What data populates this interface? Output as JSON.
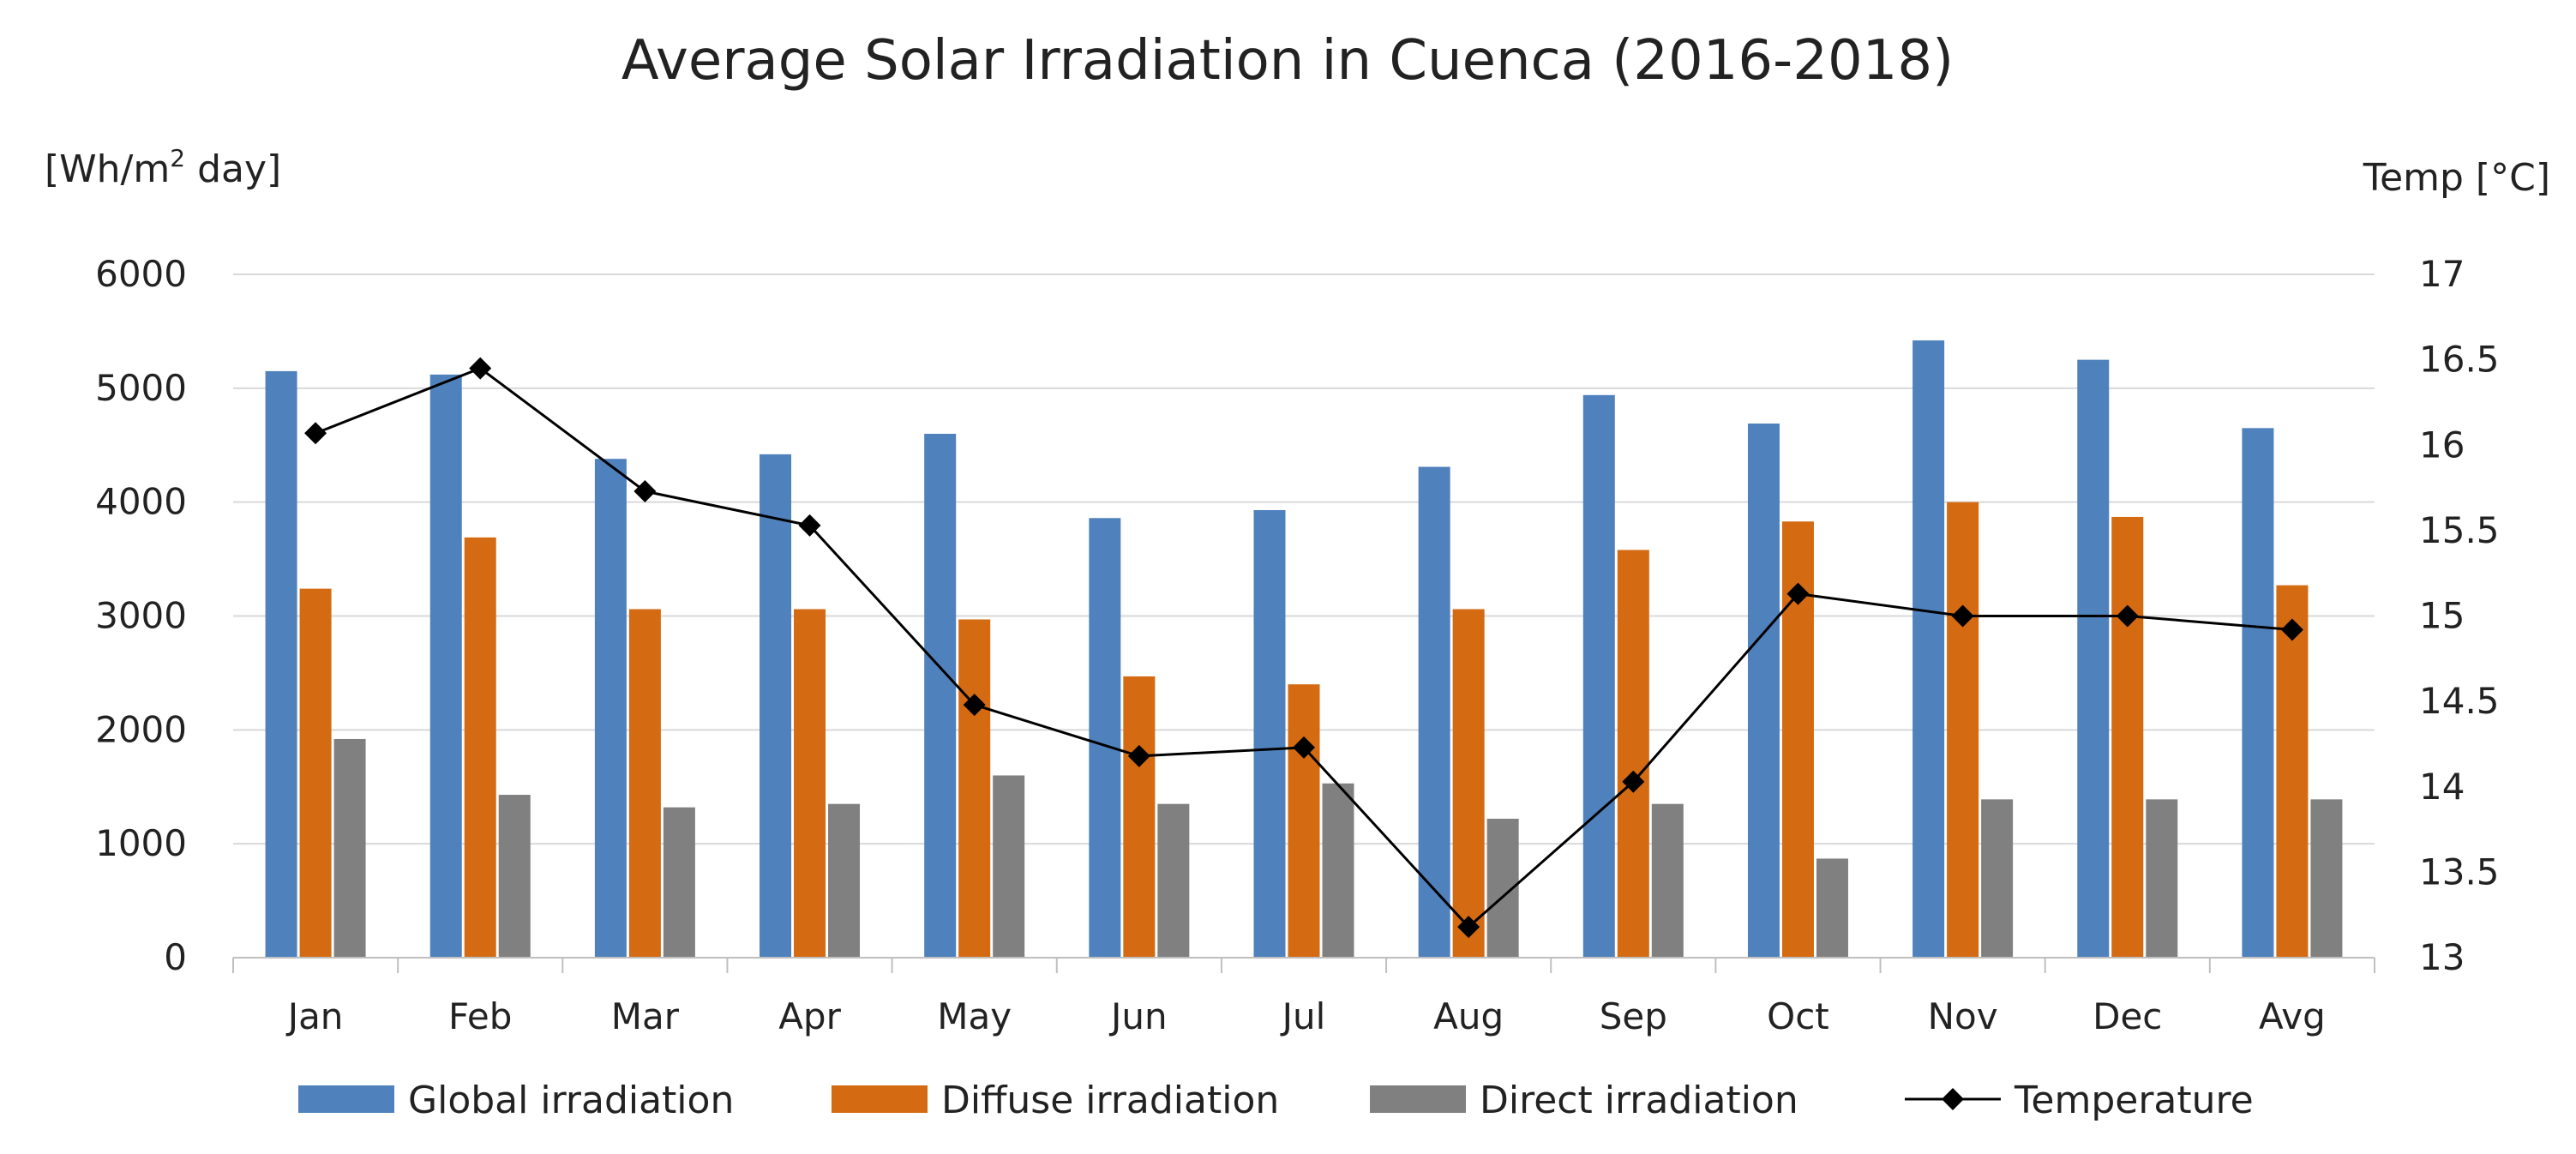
{
  "chart_data": {
    "type": "bar",
    "title": "Average Solar Irradiation in Cuenca (2016-2018)",
    "ylabel": {
      "prefix": "[Wh/m",
      "sup": "2",
      "suffix": " day]"
    },
    "y2label": "Temp  [°C]",
    "categories": [
      "Jan",
      "Feb",
      "Mar",
      "Apr",
      "May",
      "Jun",
      "Jul",
      "Aug",
      "Sep",
      "Oct",
      "Nov",
      "Dec",
      "Avg"
    ],
    "ylim": [
      0,
      6000
    ],
    "yticks": [
      "0",
      "1000",
      "2000",
      "3000",
      "4000",
      "5000",
      "6000"
    ],
    "y2lim": [
      13,
      17
    ],
    "y2ticks": [
      "13",
      "13.5",
      "14",
      "14.5",
      "15",
      "15.5",
      "16",
      "16.5",
      "17"
    ],
    "series": [
      {
        "name": "Global irradiation",
        "kind": "bar",
        "axis": "left",
        "color": "#4F81BD",
        "values": [
          5150,
          5120,
          4380,
          4420,
          4600,
          3860,
          3930,
          4310,
          4940,
          4690,
          5420,
          5250,
          4650
        ]
      },
      {
        "name": "Diffuse irradiation",
        "kind": "bar",
        "axis": "left",
        "color": "#D46A12",
        "values": [
          3240,
          3690,
          3060,
          3060,
          2970,
          2470,
          2400,
          3060,
          3580,
          3830,
          4000,
          3870,
          3270
        ]
      },
      {
        "name": "Direct irradiation",
        "kind": "bar",
        "axis": "left",
        "color": "#808080",
        "values": [
          1920,
          1430,
          1320,
          1350,
          1600,
          1350,
          1530,
          1220,
          1350,
          870,
          1390,
          1390,
          1390
        ]
      },
      {
        "name": "Temperature",
        "kind": "line",
        "axis": "right",
        "color": "#000000",
        "values": [
          16.07,
          16.45,
          15.73,
          15.53,
          14.48,
          14.18,
          14.23,
          13.18,
          14.03,
          15.13,
          15.0,
          15.0,
          14.92
        ]
      }
    ],
    "legend": "bottom",
    "grid": true
  }
}
